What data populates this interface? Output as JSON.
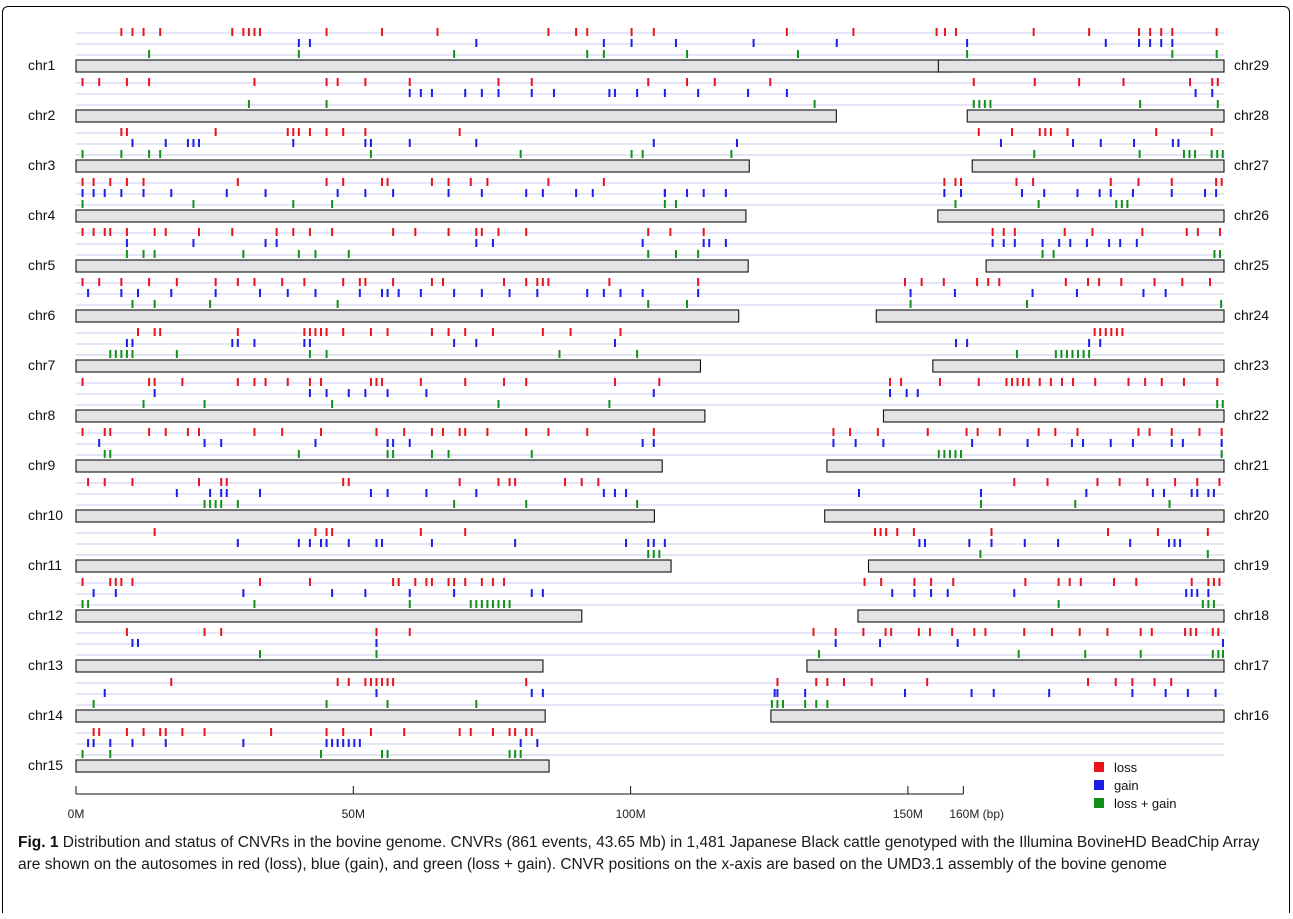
{
  "caption": {
    "label": "Fig. 1",
    "text": "Distribution and status of CNVRs in the bovine genome. CNVRs (861 events, 43.65 Mb) in 1,481 Japanese Black cattle genotyped with the Illumina BovineHD BeadChip Array are shown on the autosomes in red (loss), blue (gain), and green (loss + gain). CNVR positions on the x-axis are based on the UMD3.1 assembly of the bovine genome"
  },
  "chart_data": {
    "type": "chromosome-ideogram",
    "x_unit": "bp",
    "x_range": [
      0,
      207000000
    ],
    "x_ticks": [
      {
        "value": 0,
        "label": "0M"
      },
      {
        "value": 50000000,
        "label": "50M"
      },
      {
        "value": 100000000,
        "label": "100M"
      },
      {
        "value": 150000000,
        "label": "150M"
      },
      {
        "value": 160000000,
        "label": "160M (bp)"
      }
    ],
    "legend": [
      {
        "name": "loss",
        "color": "#e8141b"
      },
      {
        "name": "gain",
        "color": "#1c1ee8"
      },
      {
        "name": "loss + gain",
        "color": "#13901a"
      }
    ],
    "left_chromosomes": [
      {
        "name": "chr1",
        "length_mb": 158.3,
        "loss": [
          8,
          10,
          12,
          15,
          28,
          30,
          31,
          32,
          33,
          45,
          55,
          65,
          85,
          90,
          92,
          100,
          104,
          128,
          140,
          155
        ],
        "gain": [
          40,
          42,
          72,
          95,
          100,
          108,
          122,
          137
        ],
        "both": [
          13,
          40,
          68,
          92,
          95,
          110,
          130
        ]
      },
      {
        "name": "chr2",
        "length_mb": 137.1,
        "loss": [
          1,
          4,
          9,
          13,
          32,
          45,
          47,
          52,
          60,
          76,
          82,
          103,
          110,
          115,
          125
        ],
        "gain": [
          60,
          62,
          64,
          70,
          73,
          76,
          82,
          86,
          96,
          97,
          101,
          106,
          112,
          121,
          128
        ],
        "both": [
          31,
          45,
          133
        ]
      },
      {
        "name": "chr3",
        "length_mb": 121.4,
        "loss": [
          8,
          9,
          25,
          38,
          39,
          40,
          42,
          45,
          48,
          52,
          69
        ],
        "gain": [
          10,
          16,
          20,
          21,
          22,
          39,
          52,
          53,
          60,
          72,
          104,
          119
        ],
        "both": [
          1,
          8,
          13,
          15,
          53,
          80,
          100,
          102,
          118
        ]
      },
      {
        "name": "chr4",
        "length_mb": 120.8,
        "loss": [
          1,
          3,
          6,
          9,
          12,
          29,
          45,
          48,
          55,
          56,
          64,
          67,
          71,
          74,
          85,
          95
        ],
        "gain": [
          1,
          3,
          5,
          8,
          12,
          17,
          27,
          34,
          47,
          52,
          57,
          67,
          73,
          81,
          84,
          90,
          93,
          106,
          106,
          110,
          113,
          117
        ],
        "both": [
          1,
          21,
          39,
          46,
          106,
          108
        ]
      },
      {
        "name": "chr5",
        "length_mb": 121.2,
        "loss": [
          1,
          3,
          5,
          6,
          9,
          14,
          16,
          22,
          28,
          36,
          39,
          42,
          46,
          57,
          61,
          67,
          72,
          73,
          76,
          81,
          103,
          107,
          113
        ],
        "gain": [
          9,
          21,
          34,
          36,
          72,
          75,
          102,
          113,
          114,
          117
        ],
        "both": [
          9,
          12,
          14,
          30,
          40,
          43,
          49,
          103,
          108,
          112
        ]
      },
      {
        "name": "chr6",
        "length_mb": 119.5,
        "loss": [
          1,
          4,
          8,
          13,
          18,
          25,
          29,
          32,
          37,
          41,
          48,
          51,
          52,
          57,
          64,
          66,
          77,
          81,
          83,
          84,
          85,
          96,
          112
        ],
        "gain": [
          2,
          8,
          11,
          17,
          25,
          33,
          38,
          43,
          51,
          55,
          56,
          58,
          62,
          68,
          73,
          78,
          83,
          92,
          95,
          98,
          102,
          112
        ],
        "both": [
          10,
          14,
          24,
          47,
          103,
          110
        ]
      },
      {
        "name": "chr7",
        "length_mb": 112.6,
        "loss": [
          11,
          14,
          15,
          29,
          41,
          42,
          43,
          44,
          45,
          48,
          53,
          56,
          64,
          67,
          70,
          75,
          84,
          89,
          98
        ],
        "gain": [
          9,
          10,
          28,
          29,
          32,
          41,
          42,
          68,
          72,
          97
        ],
        "both": [
          6,
          7,
          8,
          9,
          10,
          18,
          42,
          45,
          87,
          101
        ]
      },
      {
        "name": "chr8",
        "length_mb": 113.4,
        "loss": [
          1,
          13,
          14,
          19,
          29,
          32,
          34,
          38,
          42,
          44,
          53,
          54,
          55,
          62,
          70,
          77,
          81,
          97,
          105
        ],
        "gain": [
          14,
          42,
          45,
          49,
          52,
          56,
          63,
          104
        ],
        "both": [
          12,
          23,
          46,
          76,
          96
        ]
      },
      {
        "name": "chr9",
        "length_mb": 105.7,
        "loss": [
          1,
          5,
          6,
          13,
          16,
          20,
          22,
          32,
          37,
          44,
          54,
          59,
          64,
          66,
          69,
          70,
          74,
          81,
          85,
          92,
          104
        ],
        "gain": [
          4,
          23,
          26,
          43,
          56,
          57,
          60,
          102,
          104
        ],
        "both": [
          5,
          6,
          40,
          56,
          57,
          64,
          67,
          82
        ]
      },
      {
        "name": "chr10",
        "length_mb": 104.3,
        "loss": [
          2,
          5,
          10,
          22,
          26,
          27,
          48,
          49,
          69,
          76,
          78,
          79,
          88,
          91,
          94
        ],
        "gain": [
          18,
          24,
          26,
          27,
          33,
          53,
          56,
          63,
          72,
          95,
          97,
          99
        ],
        "both": [
          23,
          24,
          25,
          26,
          29,
          68,
          81,
          101
        ]
      },
      {
        "name": "chr11",
        "length_mb": 107.3,
        "loss": [
          14,
          43,
          45,
          46,
          62,
          70
        ],
        "gain": [
          29,
          40,
          42,
          44,
          45,
          49,
          54,
          55,
          64,
          79,
          99,
          103,
          104,
          106
        ],
        "both": [
          103,
          104,
          105
        ]
      },
      {
        "name": "chr12",
        "length_mb": 91.2,
        "loss": [
          1,
          6,
          7,
          8,
          10,
          33,
          42,
          57,
          58,
          61,
          63,
          64,
          67,
          68,
          70,
          73,
          75,
          77
        ],
        "gain": [
          3,
          7,
          30,
          46,
          52,
          60,
          68,
          82,
          84
        ],
        "both": [
          1,
          2,
          32,
          60,
          71,
          72,
          73,
          74,
          75,
          76,
          77,
          78
        ]
      },
      {
        "name": "chr13",
        "length_mb": 84.2,
        "loss": [
          9,
          23,
          26,
          54,
          60
        ],
        "gain": [
          10,
          11,
          54
        ],
        "both": [
          33,
          54
        ]
      },
      {
        "name": "chr14",
        "length_mb": 84.6,
        "loss": [
          17,
          47,
          49,
          52,
          53,
          54,
          55,
          56,
          57,
          81
        ],
        "gain": [
          5,
          54,
          82,
          84
        ],
        "both": [
          3,
          45,
          56,
          72
        ]
      },
      {
        "name": "chr15",
        "length_mb": 85.3,
        "loss": [
          3,
          4,
          9,
          12,
          15,
          16,
          19,
          23,
          35,
          45,
          48,
          53,
          59,
          69,
          71,
          75,
          78,
          79,
          81,
          82
        ],
        "gain": [
          2,
          3,
          6,
          10,
          16,
          30,
          45,
          46,
          47,
          48,
          49,
          50,
          51,
          80,
          83
        ],
        "both": [
          1,
          6,
          44,
          55,
          56,
          78,
          79,
          80
        ]
      }
    ],
    "right_chromosomes": [
      {
        "name": "chr29",
        "length_mb": 51.5,
        "loss": [
          1,
          3,
          17,
          27,
          36,
          38,
          40,
          42,
          50
        ],
        "gain": [
          5,
          30,
          36,
          38,
          40,
          42
        ],
        "both": [
          5,
          42,
          50
        ]
      },
      {
        "name": "chr28",
        "length_mb": 46.3,
        "loss": [
          1,
          12,
          20,
          28,
          40,
          44,
          45
        ],
        "gain": [
          41,
          44
        ],
        "both": [
          1,
          2,
          3,
          4,
          31,
          45
        ]
      },
      {
        "name": "chr27",
        "length_mb": 45.4,
        "loss": [
          1,
          7,
          12,
          13,
          14,
          17,
          33,
          43
        ],
        "gain": [
          5,
          18,
          23,
          29,
          36,
          37
        ],
        "both": [
          11,
          30,
          38,
          39,
          40,
          43,
          44,
          45
        ]
      },
      {
        "name": "chr26",
        "length_mb": 51.6,
        "loss": [
          1,
          3,
          4,
          14,
          17,
          31,
          36,
          42,
          50,
          51
        ],
        "gain": [
          1,
          4,
          15,
          19,
          25,
          29,
          31,
          35,
          42,
          48,
          50
        ],
        "both": [
          3,
          18,
          32,
          33,
          34
        ]
      },
      {
        "name": "chr25",
        "length_mb": 42.9,
        "loss": [
          1,
          3,
          5,
          14,
          19,
          28,
          36,
          38,
          42
        ],
        "gain": [
          1,
          3,
          5,
          10,
          13,
          15,
          18,
          22,
          24,
          27
        ],
        "both": [
          10,
          12,
          41,
          42
        ]
      },
      {
        "name": "chr24",
        "length_mb": 62.7,
        "loss": [
          5,
          8,
          12,
          18,
          20,
          22,
          34,
          38,
          40,
          44,
          50,
          55,
          60
        ],
        "gain": [
          6,
          14,
          28,
          36,
          48,
          52
        ],
        "both": [
          6,
          27,
          62
        ]
      },
      {
        "name": "chr23",
        "length_mb": 52.5,
        "loss": [
          29,
          30,
          31,
          32,
          33,
          34
        ],
        "gain": [
          4,
          6,
          28,
          30
        ],
        "both": [
          15,
          22,
          23,
          24,
          25,
          26,
          27,
          28
        ]
      },
      {
        "name": "chr22",
        "length_mb": 61.4,
        "loss": [
          1,
          3,
          10,
          17,
          22,
          23,
          24,
          25,
          26,
          28,
          30,
          32,
          34,
          38,
          44,
          47,
          50,
          54,
          60
        ],
        "gain": [
          1,
          4,
          6
        ],
        "both": [
          60,
          61
        ]
      },
      {
        "name": "chr21",
        "length_mb": 71.6,
        "loss": [
          1,
          4,
          9,
          18,
          25,
          27,
          31,
          38,
          41,
          45,
          56,
          58,
          62,
          67,
          71
        ],
        "gain": [
          1,
          5,
          10,
          26,
          36,
          44,
          46,
          51,
          55,
          62,
          64,
          71
        ],
        "both": [
          20,
          21,
          22,
          23,
          24,
          71
        ]
      },
      {
        "name": "chr20",
        "length_mb": 72.0,
        "loss": [
          34,
          40,
          49,
          53,
          58,
          63,
          67,
          71
        ],
        "gain": [
          6,
          28,
          47,
          59,
          61,
          66,
          67,
          69,
          70
        ],
        "both": [
          28,
          45,
          62
        ]
      },
      {
        "name": "chr19",
        "length_mb": 64.1,
        "loss": [
          1,
          2,
          3,
          5,
          8,
          22,
          43,
          52,
          61
        ],
        "gain": [
          9,
          10,
          18,
          22,
          28,
          34,
          47,
          54,
          55,
          56
        ],
        "both": [
          20,
          61
        ]
      },
      {
        "name": "chr18",
        "length_mb": 66.0,
        "loss": [
          1,
          4,
          10,
          13,
          17,
          30,
          36,
          38,
          40,
          46,
          50,
          60,
          63,
          64,
          65
        ],
        "gain": [
          6,
          10,
          13,
          16,
          28,
          59,
          60,
          61,
          63
        ],
        "both": [
          36,
          62,
          63,
          64
        ]
      },
      {
        "name": "chr17",
        "length_mb": 75.2,
        "loss": [
          1,
          5,
          10,
          14,
          15,
          20,
          22,
          26,
          30,
          32,
          39,
          44,
          49,
          54,
          60,
          62,
          68,
          69,
          70,
          73,
          74
        ],
        "gain": [
          5,
          13,
          27,
          75
        ],
        "both": [
          2,
          38,
          50,
          60,
          73,
          74,
          75
        ]
      },
      {
        "name": "chr16",
        "length_mb": 81.7,
        "loss": [
          1,
          8,
          10,
          13,
          18,
          28,
          57,
          62,
          65,
          69,
          72
        ],
        "gain": [
          0.5,
          1,
          6,
          24,
          36,
          40,
          50,
          65,
          71,
          75,
          80
        ],
        "both": [
          0,
          1,
          2,
          6,
          8,
          10
        ]
      }
    ]
  }
}
